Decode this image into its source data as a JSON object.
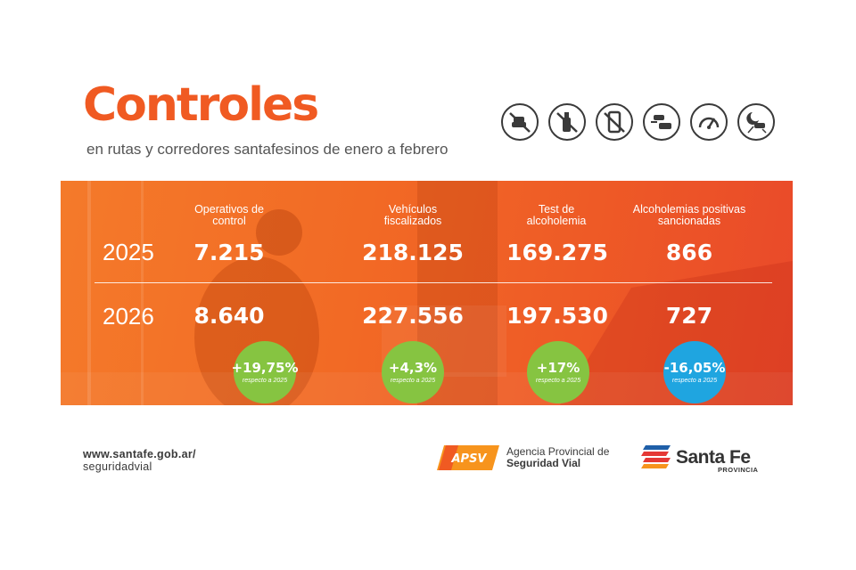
{
  "header": {
    "title": "Controles",
    "subtitle": "en rutas y corredores santafesinos de enero a febrero"
  },
  "icons": [
    "no-speeding-car-icon",
    "no-alcohol-bottle-icon",
    "no-phone-icon",
    "car-distance-icon",
    "speedometer-icon",
    "night-driving-icon"
  ],
  "table": {
    "columns": [
      "Operativos de control",
      "Vehículos fiscalizados",
      "Test de alcoholemia",
      "Alcoholemias positivas sancionadas"
    ],
    "rows": [
      {
        "year": "2025",
        "values": [
          "7.215",
          "218.125",
          "169.275",
          "866"
        ]
      },
      {
        "year": "2026",
        "values": [
          "8.640",
          "227.556",
          "197.530",
          "727"
        ]
      }
    ],
    "changes": [
      {
        "pct": "+19,75%",
        "ref": "respecto a 2025",
        "color": "#86c441"
      },
      {
        "pct": "+4,3%",
        "ref": "respecto a 2025",
        "color": "#86c441"
      },
      {
        "pct": "+17%",
        "ref": "respecto a 2025",
        "color": "#86c441"
      },
      {
        "pct": "-16,05%",
        "ref": "respecto a 2025",
        "color": "#1fa5e0"
      }
    ]
  },
  "footer": {
    "url_line1": "www.santafe.gob.ar/",
    "url_line2": "seguridadvial",
    "apsv_mark": "APSV",
    "apsv_line1": "Agencia Provincial de",
    "apsv_line2": "Seguridad Vial",
    "santafe_name": "Santa Fe",
    "santafe_sub": "PROVINCIA"
  },
  "colors": {
    "brand_orange": "#f05a22",
    "green_badge": "#86c441",
    "blue_badge": "#1fa5e0"
  }
}
